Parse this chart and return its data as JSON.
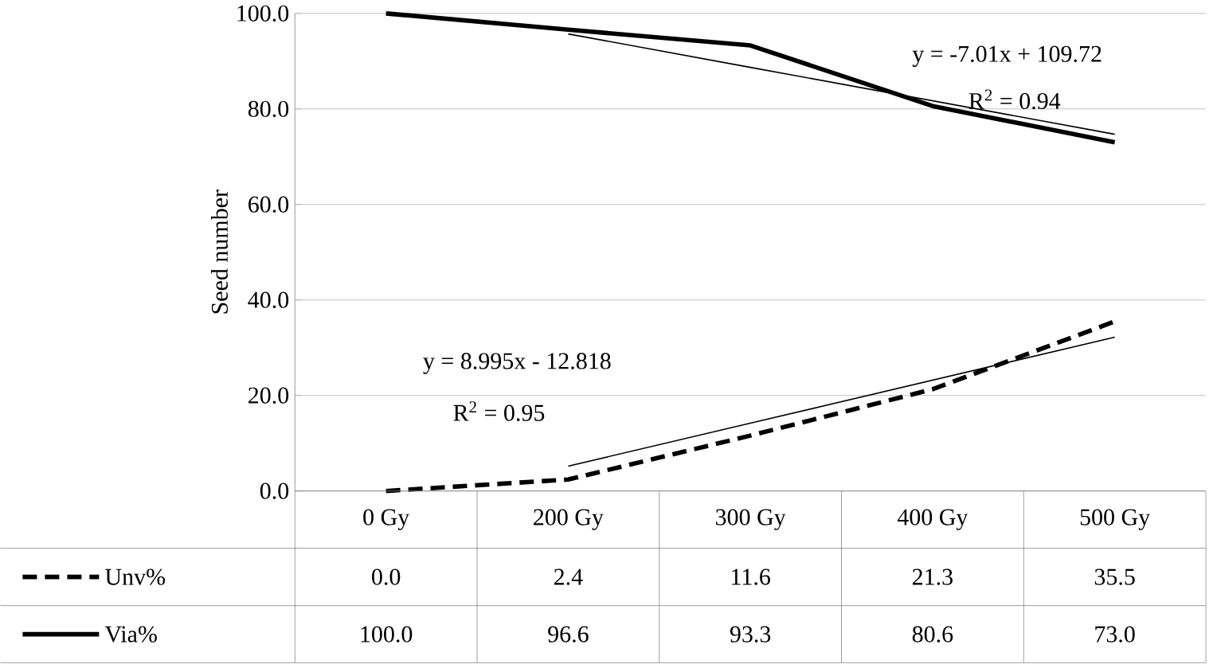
{
  "chart_data": {
    "type": "line",
    "ylabel": "Seed number",
    "categories": [
      "0 Gy",
      "200 Gy",
      "300 Gy",
      "400 Gy",
      "500 Gy"
    ],
    "series": [
      {
        "name": "Unv%",
        "color": "#000000",
        "line_style": "dashed",
        "values": [
          0.0,
          2.4,
          11.6,
          21.3,
          35.5
        ],
        "value_labels": [
          "0.0",
          "2.4",
          "11.6",
          "21.3",
          "35.5"
        ]
      },
      {
        "name": "Via%",
        "color": "#000000",
        "line_style": "solid",
        "values": [
          100.0,
          96.6,
          93.3,
          80.6,
          73.0
        ],
        "value_labels": [
          "100.0",
          "96.6",
          "93.3",
          "80.6",
          "73.0"
        ]
      },
      {
        "color": "#000000",
        "line_style": "solid",
        "values": [
          null,
          5.2,
          14.2,
          23.2,
          32.2
        ]
      },
      {
        "color": "#000000",
        "line_style": "solid",
        "values": [
          null,
          95.7,
          88.7,
          81.7,
          74.7
        ]
      }
    ],
    "ylim": [
      0,
      100
    ],
    "yticks": [
      {
        "value": 0,
        "label": "0.0"
      },
      {
        "value": 20,
        "label": "20.0"
      },
      {
        "value": 40,
        "label": "40.0"
      },
      {
        "value": 60,
        "label": "60.0"
      },
      {
        "value": 80,
        "label": "80.0"
      },
      {
        "value": 100,
        "label": "100.0"
      }
    ],
    "grid": "y",
    "legend": "bottom",
    "marker": "none",
    "annotations": [
      "y = 8.995x - 12.818",
      "R$^{2}$ = 0.95",
      "y = -7.01x + 109.72",
      "R$^{2}$ = 0.94"
    ]
  }
}
